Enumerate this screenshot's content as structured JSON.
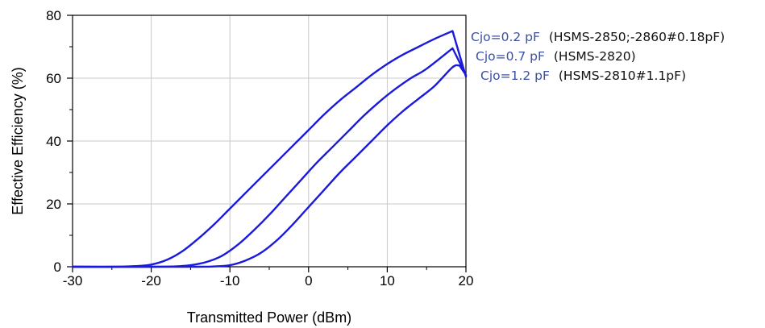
{
  "chart_data": {
    "type": "line",
    "title": "",
    "xlabel": "Transmitted Power (dBm)",
    "ylabel": "Effective Efficiency (%)",
    "xlim": [
      -30,
      20
    ],
    "ylim": [
      0,
      80
    ],
    "xticks": [
      -30,
      -20,
      -10,
      0,
      10,
      20
    ],
    "xtick_labels": [
      "-30",
      "-20",
      "-10",
      "0",
      "10",
      "20"
    ],
    "yticks": [
      0,
      20,
      40,
      60,
      80
    ],
    "ytick_labels": [
      "0",
      "20",
      "40",
      "60",
      "80"
    ],
    "grid": true,
    "line_color": "#1a1adc",
    "series": [
      {
        "x": [
          -30,
          -25,
          -22,
          -20,
          -18,
          -16,
          -14,
          -12,
          -10,
          -8,
          -6,
          -4,
          -2,
          0,
          2,
          4,
          6,
          8,
          10,
          12,
          14,
          16,
          18.3,
          20
        ],
        "y": [
          0,
          0,
          0.2,
          0.7,
          2.2,
          5,
          9,
          13.5,
          18.5,
          23.5,
          28.5,
          33.5,
          38.5,
          43.5,
          48.5,
          53,
          57,
          61,
          64.5,
          67.5,
          70,
          72.5,
          75,
          60.5
        ]
      },
      {
        "x": [
          -30,
          -20,
          -17,
          -15,
          -13,
          -11,
          -9,
          -7,
          -5,
          -3,
          -1,
          1,
          3,
          5,
          7,
          9,
          11,
          13,
          15,
          18.3,
          20
        ],
        "y": [
          0,
          0,
          0.1,
          0.5,
          1.5,
          3.5,
          7,
          11.5,
          16.5,
          22,
          27.5,
          33,
          38,
          43,
          48,
          52.5,
          56.5,
          60,
          63,
          69.5,
          61
        ]
      },
      {
        "x": [
          -30,
          -15,
          -12,
          -10,
          -8,
          -6,
          -4,
          -2,
          0,
          2,
          4,
          6,
          8,
          10,
          12,
          14,
          16,
          18.3,
          19.2,
          20
        ],
        "y": [
          0,
          0,
          0.1,
          0.5,
          2,
          4.5,
          8.5,
          13.5,
          19,
          24.5,
          30,
          35,
          40,
          45,
          49.5,
          53.5,
          57.5,
          63.5,
          64,
          61
        ]
      }
    ],
    "annotations": [
      {
        "cjo": "Cjo=0.2 pF",
        "part": "(HSMS-2850;-2860#0.18pF)"
      },
      {
        "cjo": "Cjo=0.7 pF",
        "part": "(HSMS-2820)"
      },
      {
        "cjo": "Cjo=1.2 pF",
        "part": "(HSMS-2810#1.1pF)"
      }
    ]
  }
}
